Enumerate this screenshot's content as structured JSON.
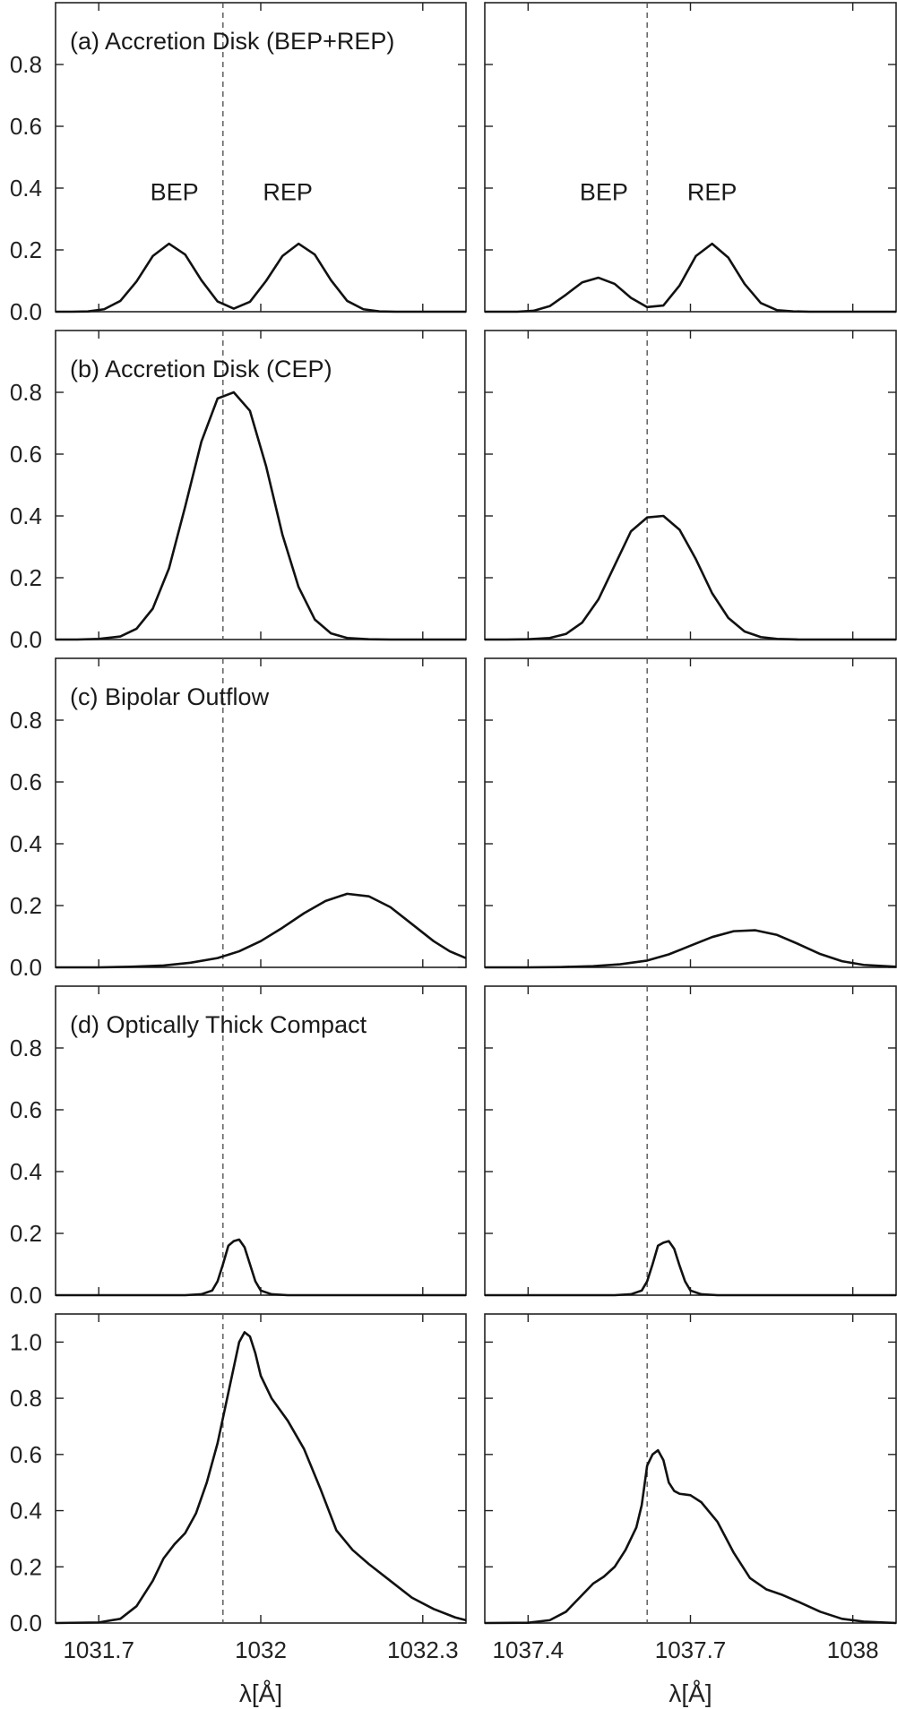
{
  "chart_data": {
    "type": "line",
    "xlabel": "λ[Å]",
    "columns": [
      {
        "xlim": [
          1031.62,
          1032.38
        ],
        "xticks": [
          1031.7,
          1032.0,
          1032.3
        ],
        "xtick_labels": [
          "1031.7",
          "1032",
          "1032.3"
        ],
        "rest_wavelength": 1031.93
      },
      {
        "xlim": [
          1037.32,
          1038.08
        ],
        "xticks": [
          1037.4,
          1037.7,
          1038.0
        ],
        "xtick_labels": [
          "1037.4",
          "1037.7",
          "1038"
        ],
        "rest_wavelength": 1037.62
      }
    ],
    "rows": [
      {
        "label": "(a) Accretion Disk (BEP+REP)",
        "ylim": [
          0,
          1.0
        ],
        "yticks": [
          0.0,
          0.2,
          0.4,
          0.6,
          0.8
        ],
        "ytick_labels": [
          "0.0",
          "0.2",
          "0.4",
          "0.6",
          "0.8"
        ],
        "annotations": [
          {
            "text": "BEP",
            "column": 0,
            "x": 1031.84,
            "y": 0.39
          },
          {
            "text": "REP",
            "column": 0,
            "x": 1032.05,
            "y": 0.39
          },
          {
            "text": "BEP",
            "column": 1,
            "x": 1037.54,
            "y": 0.39
          },
          {
            "text": "REP",
            "column": 1,
            "x": 1037.74,
            "y": 0.39
          }
        ],
        "series": [
          {
            "x": [
              1031.62,
              1031.65,
              1031.68,
              1031.71,
              1031.74,
              1031.77,
              1031.8,
              1031.83,
              1031.86,
              1031.89,
              1031.92,
              1031.95,
              1031.98,
              1032.01,
              1032.04,
              1032.07,
              1032.1,
              1032.13,
              1032.16,
              1032.19,
              1032.22,
              1032.25,
              1032.28,
              1032.31,
              1032.34,
              1032.38
            ],
            "y": [
              0.0,
              0.0,
              0.001,
              0.008,
              0.035,
              0.098,
              0.18,
              0.22,
              0.185,
              0.102,
              0.033,
              0.01,
              0.032,
              0.1,
              0.18,
              0.22,
              0.185,
              0.102,
              0.035,
              0.008,
              0.001,
              0.0,
              0.0,
              0.0,
              0.0,
              0.0
            ]
          },
          {
            "x": [
              1037.32,
              1037.35,
              1037.38,
              1037.41,
              1037.44,
              1037.47,
              1037.5,
              1037.53,
              1037.56,
              1037.59,
              1037.62,
              1037.65,
              1037.68,
              1037.71,
              1037.74,
              1037.77,
              1037.8,
              1037.83,
              1037.86,
              1037.89,
              1037.92,
              1037.95,
              1037.98,
              1038.01,
              1038.04,
              1038.08
            ],
            "y": [
              0.0,
              0.0,
              0.0,
              0.003,
              0.018,
              0.055,
              0.095,
              0.11,
              0.09,
              0.045,
              0.015,
              0.02,
              0.085,
              0.18,
              0.22,
              0.175,
              0.09,
              0.028,
              0.005,
              0.001,
              0.0,
              0.0,
              0.0,
              0.0,
              0.0,
              0.0
            ]
          }
        ]
      },
      {
        "label": "(b) Accretion Disk (CEP)",
        "ylim": [
          0,
          1.0
        ],
        "yticks": [
          0.0,
          0.2,
          0.4,
          0.6,
          0.8
        ],
        "ytick_labels": [
          "0.0",
          "0.2",
          "0.4",
          "0.6",
          "0.8"
        ],
        "annotations": [],
        "series": [
          {
            "x": [
              1031.62,
              1031.66,
              1031.7,
              1031.74,
              1031.77,
              1031.8,
              1031.83,
              1031.86,
              1031.89,
              1031.92,
              1031.95,
              1031.98,
              1032.01,
              1032.04,
              1032.07,
              1032.1,
              1032.13,
              1032.16,
              1032.2,
              1032.24,
              1032.28,
              1032.32,
              1032.38
            ],
            "y": [
              0.0,
              0.0,
              0.002,
              0.01,
              0.035,
              0.1,
              0.23,
              0.43,
              0.64,
              0.78,
              0.8,
              0.74,
              0.56,
              0.34,
              0.17,
              0.065,
              0.02,
              0.005,
              0.001,
              0.0,
              0.0,
              0.0,
              0.0
            ]
          },
          {
            "x": [
              1037.32,
              1037.36,
              1037.4,
              1037.44,
              1037.47,
              1037.5,
              1037.53,
              1037.56,
              1037.59,
              1037.62,
              1037.65,
              1037.68,
              1037.71,
              1037.74,
              1037.77,
              1037.8,
              1037.83,
              1037.86,
              1037.9,
              1037.95,
              1038.0,
              1038.08
            ],
            "y": [
              0.0,
              0.0,
              0.001,
              0.005,
              0.018,
              0.055,
              0.13,
              0.24,
              0.35,
              0.395,
              0.4,
              0.355,
              0.26,
              0.15,
              0.07,
              0.026,
              0.008,
              0.002,
              0.0,
              0.0,
              0.0,
              0.0
            ]
          }
        ]
      },
      {
        "label": "(c) Bipolar Outflow",
        "ylim": [
          0,
          1.0
        ],
        "yticks": [
          0.0,
          0.2,
          0.4,
          0.6,
          0.8
        ],
        "ytick_labels": [
          "0.0",
          "0.2",
          "0.4",
          "0.6",
          "0.8"
        ],
        "annotations": [],
        "series": [
          {
            "x": [
              1031.62,
              1031.7,
              1031.76,
              1031.82,
              1031.87,
              1031.92,
              1031.96,
              1032.0,
              1032.04,
              1032.08,
              1032.12,
              1032.16,
              1032.2,
              1032.24,
              1032.28,
              1032.32,
              1032.35,
              1032.38
            ],
            "y": [
              0.0,
              0.0,
              0.002,
              0.006,
              0.015,
              0.03,
              0.052,
              0.085,
              0.128,
              0.175,
              0.215,
              0.238,
              0.23,
              0.195,
              0.14,
              0.085,
              0.052,
              0.03
            ]
          },
          {
            "x": [
              1037.32,
              1037.4,
              1037.46,
              1037.52,
              1037.57,
              1037.62,
              1037.66,
              1037.7,
              1037.74,
              1037.78,
              1037.82,
              1037.86,
              1037.9,
              1037.94,
              1037.98,
              1038.02,
              1038.08
            ],
            "y": [
              0.0,
              0.0,
              0.001,
              0.004,
              0.01,
              0.022,
              0.042,
              0.07,
              0.098,
              0.117,
              0.12,
              0.105,
              0.075,
              0.043,
              0.02,
              0.008,
              0.002
            ]
          }
        ]
      },
      {
        "label": "(d) Optically Thick Compact",
        "ylim": [
          0,
          1.0
        ],
        "yticks": [
          0.0,
          0.2,
          0.4,
          0.6,
          0.8
        ],
        "ytick_labels": [
          "0.0",
          "0.2",
          "0.4",
          "0.6",
          "0.8"
        ],
        "annotations": [],
        "series": [
          {
            "x": [
              1031.62,
              1031.86,
              1031.89,
              1031.91,
              1031.92,
              1031.93,
              1031.94,
              1031.95,
              1031.96,
              1031.97,
              1031.98,
              1031.99,
              1032.0,
              1032.02,
              1032.05,
              1032.38
            ],
            "y": [
              0.0,
              0.0,
              0.003,
              0.015,
              0.045,
              0.1,
              0.16,
              0.175,
              0.18,
              0.155,
              0.1,
              0.045,
              0.015,
              0.003,
              0.0,
              0.0
            ]
          },
          {
            "x": [
              1037.32,
              1037.56,
              1037.59,
              1037.61,
              1037.62,
              1037.63,
              1037.64,
              1037.65,
              1037.66,
              1037.67,
              1037.68,
              1037.69,
              1037.7,
              1037.72,
              1037.75,
              1038.08
            ],
            "y": [
              0.0,
              0.0,
              0.003,
              0.015,
              0.045,
              0.1,
              0.16,
              0.17,
              0.175,
              0.15,
              0.095,
              0.045,
              0.015,
              0.003,
              0.0,
              0.0
            ]
          }
        ]
      },
      {
        "label": "",
        "ylim": [
          0,
          1.1
        ],
        "yticks": [
          0.0,
          0.2,
          0.4,
          0.6,
          0.8,
          1.0
        ],
        "ytick_labels": [
          "0.0",
          "0.2",
          "0.4",
          "0.6",
          "0.8",
          "1.0"
        ],
        "annotations": [],
        "series": [
          {
            "x": [
              1031.62,
              1031.7,
              1031.74,
              1031.77,
              1031.8,
              1031.82,
              1031.84,
              1031.86,
              1031.88,
              1031.9,
              1031.92,
              1031.94,
              1031.96,
              1031.97,
              1031.98,
              1031.99,
              1032.0,
              1032.02,
              1032.05,
              1032.08,
              1032.11,
              1032.14,
              1032.17,
              1032.2,
              1032.24,
              1032.28,
              1032.32,
              1032.36,
              1032.38
            ],
            "y": [
              0.0,
              0.002,
              0.015,
              0.06,
              0.15,
              0.23,
              0.28,
              0.32,
              0.39,
              0.5,
              0.64,
              0.82,
              1.0,
              1.035,
              1.02,
              0.96,
              0.88,
              0.8,
              0.72,
              0.62,
              0.48,
              0.33,
              0.26,
              0.21,
              0.15,
              0.09,
              0.05,
              0.02,
              0.01
            ]
          },
          {
            "x": [
              1037.32,
              1037.4,
              1037.44,
              1037.47,
              1037.5,
              1037.52,
              1037.54,
              1037.56,
              1037.58,
              1037.6,
              1037.61,
              1037.62,
              1037.63,
              1037.64,
              1037.65,
              1037.66,
              1037.67,
              1037.68,
              1037.7,
              1037.72,
              1037.75,
              1037.78,
              1037.81,
              1037.84,
              1037.87,
              1037.9,
              1037.94,
              1037.98,
              1038.02,
              1038.08
            ],
            "y": [
              0.0,
              0.001,
              0.01,
              0.04,
              0.1,
              0.14,
              0.165,
              0.2,
              0.26,
              0.34,
              0.42,
              0.56,
              0.6,
              0.615,
              0.58,
              0.5,
              0.47,
              0.46,
              0.455,
              0.43,
              0.36,
              0.25,
              0.16,
              0.12,
              0.1,
              0.075,
              0.04,
              0.015,
              0.005,
              0.0
            ]
          }
        ]
      }
    ]
  }
}
